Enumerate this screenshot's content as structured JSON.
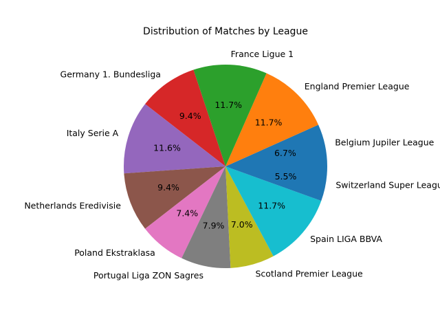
{
  "chart_data": {
    "type": "pie",
    "title": "Distribution of Matches by League",
    "start_angle_deg": 0,
    "direction": "counterclockwise",
    "slices": [
      {
        "label": "Belgium Jupiler League",
        "value": 6.7,
        "pct_label": "6.7%",
        "color": "#1f77b4"
      },
      {
        "label": "England Premier League",
        "value": 11.7,
        "pct_label": "11.7%",
        "color": "#ff7f0e"
      },
      {
        "label": "France Ligue 1",
        "value": 11.7,
        "pct_label": "11.7%",
        "color": "#2ca02c"
      },
      {
        "label": "Germany 1. Bundesliga",
        "value": 9.4,
        "pct_label": "9.4%",
        "color": "#d62728"
      },
      {
        "label": "Italy Serie A",
        "value": 11.6,
        "pct_label": "11.6%",
        "color": "#9467bd"
      },
      {
        "label": "Netherlands Eredivisie",
        "value": 9.4,
        "pct_label": "9.4%",
        "color": "#8c564b"
      },
      {
        "label": "Poland Ekstraklasa",
        "value": 7.4,
        "pct_label": "7.4%",
        "color": "#e377c2"
      },
      {
        "label": "Portugal Liga ZON Sagres",
        "value": 7.9,
        "pct_label": "7.9%",
        "color": "#7f7f7f"
      },
      {
        "label": "Scotland Premier League",
        "value": 7.0,
        "pct_label": "7.0%",
        "color": "#bcbd22"
      },
      {
        "label": "Spain LIGA BBVA",
        "value": 11.7,
        "pct_label": "11.7%",
        "color": "#17becf"
      },
      {
        "label": "Switzerland Super League",
        "value": 5.5,
        "pct_label": "5.5%",
        "color": "#1f77b4"
      }
    ]
  }
}
